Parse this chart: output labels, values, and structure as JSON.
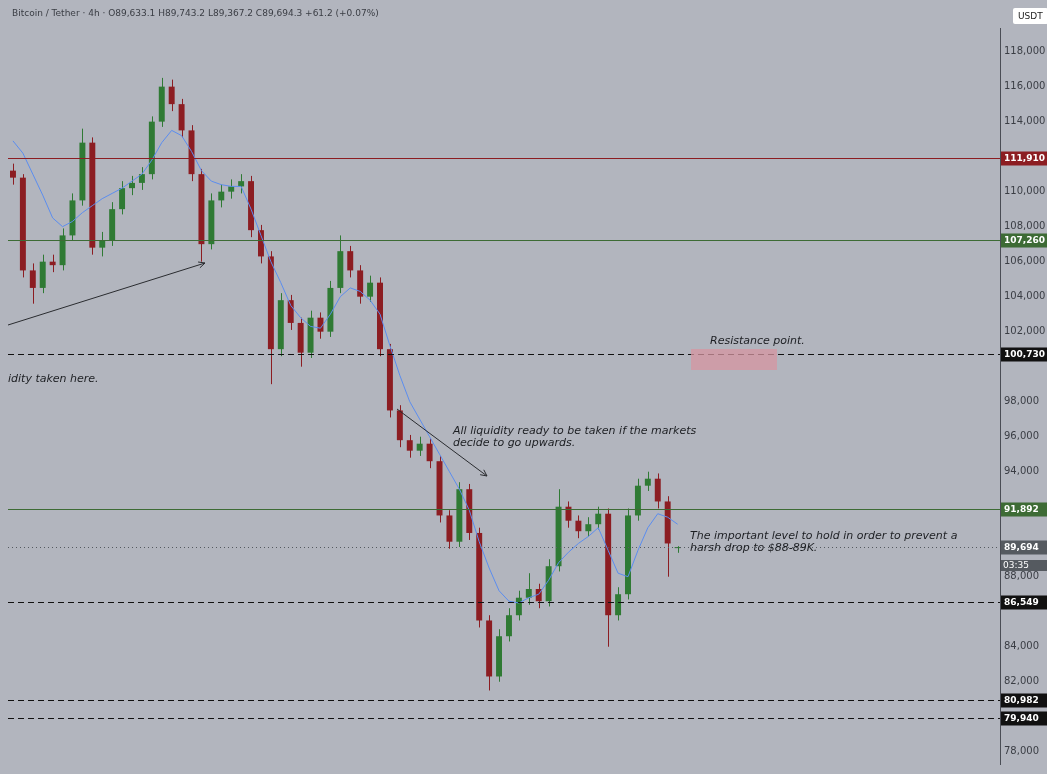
{
  "chart_data": {
    "type": "candlestick",
    "title": "Bitcoin / Tether · 4h · O89,633.1 H89,743.2 L89,367.2 C89,694.3 +61.2 (+0.07%)",
    "annotations": [
      "USDT",
      "03:35",
      "idity taken here.",
      "Resistance point.",
      "All liquidity ready to be taken if the markets decide to go upwards.",
      "The important level to hold in order to prevent a harsh drop to $88-89K."
    ],
    "categories": [
      null,
      null,
      null,
      null,
      null,
      null,
      null,
      null,
      null,
      null,
      null,
      null,
      null,
      null,
      null,
      null,
      null,
      null,
      null,
      null,
      null,
      null,
      null,
      null,
      null,
      null,
      null,
      null,
      null,
      null,
      null,
      null,
      null,
      null,
      null,
      null,
      null,
      null,
      null,
      null,
      null,
      null,
      null,
      null,
      null,
      null,
      null,
      null,
      null,
      null,
      null,
      null,
      null,
      null,
      null,
      null,
      null,
      null,
      null,
      null,
      null,
      null,
      null,
      null,
      null,
      null,
      null,
      null,
      null,
      null,
      null,
      null,
      null,
      null,
      null,
      null,
      null,
      null,
      null,
      null,
      null,
      null,
      null,
      null,
      null,
      null,
      null,
      null,
      null,
      null,
      null,
      null,
      null,
      null,
      null,
      null,
      null,
      null,
      null,
      null
    ],
    "ohlc": [
      [
        111200,
        111600,
        110400,
        110800
      ],
      [
        110800,
        111000,
        105100,
        105500
      ],
      [
        105500,
        105900,
        103600,
        104500
      ],
      [
        104500,
        106400,
        104200,
        106000
      ],
      [
        106000,
        106400,
        105400,
        105800
      ],
      [
        105800,
        107900,
        105500,
        107500
      ],
      [
        107500,
        109900,
        107200,
        109500
      ],
      [
        109500,
        113600,
        109200,
        112800
      ],
      [
        112800,
        113100,
        106400,
        106800
      ],
      [
        106800,
        107700,
        106300,
        107200
      ],
      [
        107200,
        109400,
        106900,
        109000
      ],
      [
        109000,
        110600,
        108700,
        110200
      ],
      [
        110200,
        110900,
        109800,
        110500
      ],
      [
        110500,
        111400,
        110100,
        111000
      ],
      [
        111000,
        114300,
        110700,
        114000
      ],
      [
        114000,
        116500,
        113700,
        116000
      ],
      [
        116000,
        116400,
        114600,
        115000
      ],
      [
        115000,
        115300,
        113100,
        113500
      ],
      [
        113500,
        113800,
        110600,
        111000
      ],
      [
        111000,
        111300,
        106000,
        107000
      ],
      [
        107000,
        109900,
        106700,
        109500
      ],
      [
        109500,
        110400,
        109100,
        110000
      ],
      [
        110000,
        110700,
        109600,
        110300
      ],
      [
        110300,
        111000,
        109900,
        110600
      ],
      [
        110600,
        110900,
        107400,
        107800
      ],
      [
        107800,
        108100,
        105900,
        106300
      ],
      [
        106300,
        106600,
        99000,
        101000
      ],
      [
        101000,
        104200,
        100600,
        103800
      ],
      [
        103800,
        104100,
        102100,
        102500
      ],
      [
        102500,
        102800,
        100000,
        100800
      ],
      [
        100800,
        103200,
        100500,
        102800
      ],
      [
        102800,
        103100,
        101600,
        102000
      ],
      [
        102000,
        104900,
        101700,
        104500
      ],
      [
        104500,
        107500,
        104200,
        106600
      ],
      [
        106600,
        106900,
        105100,
        105500
      ],
      [
        105500,
        105800,
        103600,
        104000
      ],
      [
        104000,
        105200,
        103700,
        104800
      ],
      [
        104800,
        105100,
        100600,
        101000
      ],
      [
        101000,
        101300,
        97100,
        97500
      ],
      [
        97500,
        97800,
        95400,
        95800
      ],
      [
        95800,
        96100,
        94800,
        95200
      ],
      [
        95200,
        96000,
        94900,
        95600
      ],
      [
        95600,
        95900,
        94200,
        94600
      ],
      [
        94600,
        94900,
        91100,
        91500
      ],
      [
        91500,
        91800,
        89600,
        90000
      ],
      [
        90000,
        93400,
        89700,
        93000
      ],
      [
        93000,
        93300,
        90100,
        90500
      ],
      [
        90500,
        90800,
        85100,
        85500
      ],
      [
        85500,
        85800,
        81500,
        82300
      ],
      [
        82300,
        85000,
        82000,
        84600
      ],
      [
        84600,
        86200,
        84300,
        85800
      ],
      [
        85800,
        87200,
        85500,
        86800
      ],
      [
        86800,
        88200,
        86400,
        87300
      ],
      [
        87300,
        87600,
        86200,
        86600
      ],
      [
        86600,
        89000,
        86300,
        88600
      ],
      [
        88600,
        93000,
        88300,
        92000
      ],
      [
        92000,
        92300,
        90800,
        91200
      ],
      [
        91200,
        91500,
        90200,
        90600
      ],
      [
        90600,
        91400,
        90300,
        91000
      ],
      [
        91000,
        92000,
        90700,
        91600
      ],
      [
        91600,
        91900,
        84000,
        85800
      ],
      [
        85800,
        87400,
        85500,
        87000
      ],
      [
        87000,
        91900,
        86700,
        91500
      ],
      [
        91500,
        93600,
        91200,
        93200
      ],
      [
        93200,
        94000,
        92900,
        93600
      ],
      [
        93600,
        93900,
        91900,
        92300
      ],
      [
        92300,
        92600,
        88000,
        89900
      ],
      [
        89633.1,
        89743.2,
        89367.2,
        89694.3
      ],
      null,
      null,
      null,
      null,
      null,
      null,
      null,
      null,
      null,
      null,
      null,
      null,
      null,
      null,
      null,
      null,
      null,
      null,
      null,
      null,
      null,
      null,
      null,
      null,
      null,
      null,
      null,
      null,
      null,
      null,
      null,
      null
    ],
    "colors": [
      "#8c1d22",
      "#8c1d22",
      "#8c1d22",
      "#2f7a34",
      "#8c1d22",
      "#2f7a34",
      "#2f7a34",
      "#2f7a34",
      "#8c1d22",
      "#2f7a34",
      "#2f7a34",
      "#2f7a34",
      "#2f7a34",
      "#2f7a34",
      "#2f7a34",
      "#2f7a34",
      "#8c1d22",
      "#8c1d22",
      "#8c1d22",
      "#8c1d22",
      "#2f7a34",
      "#2f7a34",
      "#2f7a34",
      "#2f7a34",
      "#8c1d22",
      "#8c1d22",
      "#8c1d22",
      "#2f7a34",
      "#8c1d22",
      "#8c1d22",
      "#2f7a34",
      "#8c1d22",
      "#2f7a34",
      "#2f7a34",
      "#8c1d22",
      "#8c1d22",
      "#2f7a34",
      "#8c1d22",
      "#8c1d22",
      "#8c1d22",
      "#8c1d22",
      "#2f7a34",
      "#8c1d22",
      "#8c1d22",
      "#8c1d22",
      "#2f7a34",
      "#8c1d22",
      "#8c1d22",
      "#8c1d22",
      "#2f7a34",
      "#2f7a34",
      "#2f7a34",
      "#2f7a34",
      "#8c1d22",
      "#2f7a34",
      "#2f7a34",
      "#8c1d22",
      "#8c1d22",
      "#2f7a34",
      "#2f7a34",
      "#8c1d22",
      "#2f7a34",
      "#2f7a34",
      "#2f7a34",
      "#2f7a34",
      "#8c1d22",
      "#8c1d22",
      "#2f7a34",
      null,
      null,
      null,
      null,
      null,
      null,
      null,
      null,
      null,
      null,
      null,
      null,
      null,
      null,
      null,
      null,
      null,
      null,
      null,
      null,
      null,
      null,
      null,
      null,
      null,
      null,
      null,
      null,
      null,
      null,
      null,
      null
    ],
    "series": [
      {
        "type": "line",
        "color": "#5b8def",
        "values": [
          112900,
          112200,
          111000,
          109800,
          108500,
          108000,
          108300,
          108800,
          109200,
          109600,
          109900,
          110200,
          110600,
          111000,
          111800,
          112800,
          113500,
          113200,
          112300,
          111200,
          110600,
          110400,
          110300,
          110300,
          109000,
          107500,
          106000,
          104800,
          103500,
          102800,
          102300,
          102200,
          103000,
          104000,
          104500,
          104300,
          103800,
          103000,
          101200,
          99500,
          98000,
          97000,
          96000,
          95000,
          94000,
          93000,
          91800,
          90000,
          88500,
          87200,
          86600,
          86500,
          86800,
          87000,
          87800,
          88800,
          89400,
          89900,
          90300,
          90800,
          89500,
          88200,
          88000,
          89500,
          90800,
          91600,
          91400,
          91000,
          null,
          null,
          null,
          null,
          null,
          null,
          null,
          null,
          null,
          null,
          null,
          null,
          null,
          null,
          null,
          null,
          null,
          null,
          null,
          null,
          null,
          null,
          null,
          null,
          null,
          null,
          null,
          null,
          null,
          null,
          null,
          null
        ]
      }
    ],
    "marker": "none",
    "ylim": [
      77300,
      119350
    ],
    "yticks": [
      {
        "value": 78000,
        "label": "78,000"
      },
      {
        "value": 80000,
        "label": null
      },
      {
        "value": 82000,
        "label": "82,000"
      },
      {
        "value": 84000,
        "label": "84,000"
      },
      {
        "value": 88000,
        "label": "88,000"
      },
      {
        "value": 92000,
        "label": null
      },
      {
        "value": 94000,
        "label": "94,000"
      },
      {
        "value": 96000,
        "label": "96,000"
      },
      {
        "value": 98000,
        "label": "98,000"
      },
      {
        "value": 102000,
        "label": "102,000"
      },
      {
        "value": 104000,
        "label": "104,000"
      },
      {
        "value": 106000,
        "label": "106,000"
      },
      {
        "value": 108000,
        "label": "108,000"
      },
      {
        "value": 110000,
        "label": "110,000"
      },
      {
        "value": 112000,
        "label": null
      },
      {
        "value": 114000,
        "label": "114,000"
      },
      {
        "value": 116000,
        "label": "116,000"
      },
      {
        "value": 118000,
        "label": "118,000"
      }
    ],
    "tick_labels": "y",
    "legend": false,
    "ref_lines": [
      {
        "axis": "y",
        "value": 111910,
        "label": "111,910",
        "color": "#8c1d22",
        "line_style": "solid"
      },
      {
        "axis": "y",
        "value": 107260,
        "label": "107,260",
        "color": "#3d6b35",
        "line_style": "solid"
      },
      {
        "axis": "y",
        "value": 100730,
        "label": "100,730",
        "color": "#111111",
        "line_style": "dashed"
      },
      {
        "axis": "y",
        "value": 91892,
        "label": "91,892",
        "color": "#3d6b35",
        "line_style": "solid"
      },
      {
        "axis": "y",
        "value": 89694,
        "label": "89,694",
        "color": "#555a60",
        "line_style": "dotted"
      },
      {
        "axis": "y",
        "value": 86549,
        "label": "86,549",
        "color": "#111111",
        "line_style": "dashed"
      },
      {
        "axis": "y",
        "value": 80982,
        "label": "80,982",
        "color": "#111111",
        "line_style": "dashed"
      },
      {
        "axis": "y",
        "value": 79940,
        "label": "79,940",
        "color": "#111111",
        "line_style": "dashed"
      }
    ]
  }
}
